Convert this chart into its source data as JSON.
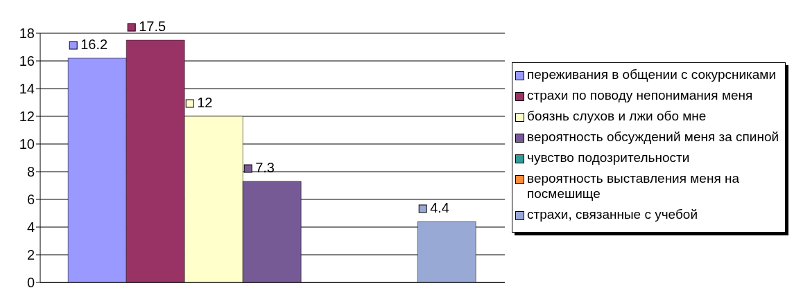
{
  "chart_data": {
    "type": "bar",
    "categories": [
      null
    ],
    "series": [
      {
        "name": "переживания в общении с сокурсниками",
        "color": "#9999ff",
        "values": [
          16.2
        ]
      },
      {
        "name": "страхи по поводу непонимания меня",
        "color": "#993366",
        "values": [
          17.5
        ]
      },
      {
        "name": "боязнь слухов и лжи обо мне",
        "color": "#ffffcc",
        "values": [
          12
        ]
      },
      {
        "name": "вероятность обсуждений меня за спиной",
        "color": "#765a96",
        "values": [
          7.3
        ]
      },
      {
        "name": "чувство подозрительности",
        "color": "#339999",
        "values": [
          null
        ]
      },
      {
        "name": "вероятность выставления меня на посмешище",
        "color": "#ff8c3c",
        "values": [
          null
        ]
      },
      {
        "name": "страхи, связанные с учебой",
        "color": "#99a9d6",
        "values": [
          4.4
        ]
      }
    ],
    "ylim": [
      0,
      18
    ],
    "yticks": [
      0,
      2,
      4,
      6,
      8,
      10,
      12,
      14,
      16,
      18
    ],
    "grid": "y",
    "legend": "right",
    "data_labels": true
  }
}
